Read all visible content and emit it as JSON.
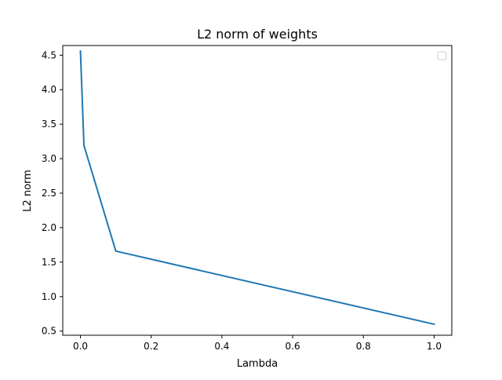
{
  "chart_data": {
    "type": "line",
    "title": "L2 norm of weights",
    "xlabel": "Lambda",
    "ylabel": "L2 norm",
    "xlim": [
      -0.05,
      1.05
    ],
    "ylim": [
      0.44,
      4.64
    ],
    "xticks": [
      0.0,
      0.2,
      0.4,
      0.6,
      0.8,
      1.0
    ],
    "xtick_labels": [
      "0.0",
      "0.2",
      "0.4",
      "0.6",
      "0.8",
      "1.0"
    ],
    "yticks": [
      0.5,
      1.0,
      1.5,
      2.0,
      2.5,
      3.0,
      3.5,
      4.0,
      4.5
    ],
    "ytick_labels": [
      "0.5",
      "1.0",
      "1.5",
      "2.0",
      "2.5",
      "3.0",
      "3.5",
      "4.0",
      "4.5"
    ],
    "grid": false,
    "legend": {
      "placement": "top-right",
      "entries": []
    },
    "series": [
      {
        "color": "#1f77b4",
        "x": [
          0.0,
          0.01,
          0.1,
          1.0
        ],
        "y": [
          4.56,
          3.19,
          1.66,
          0.6
        ]
      }
    ]
  }
}
